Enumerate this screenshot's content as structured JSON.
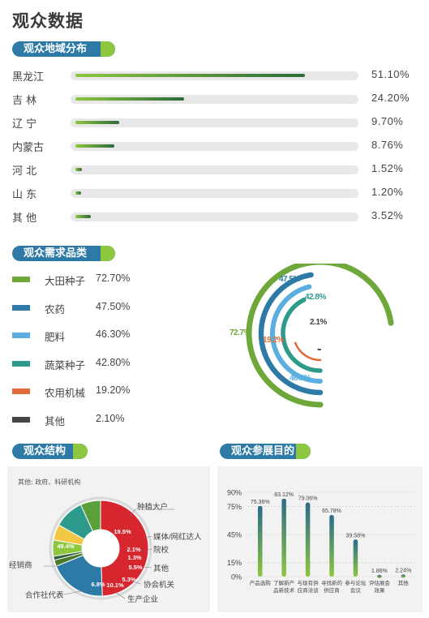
{
  "page": {
    "title": "观众数据"
  },
  "sections": {
    "region": "观众地域分布",
    "demand": "观众需求品类",
    "structure": "观众结构",
    "purpose": "观众参展目的"
  },
  "structure_note": "其他: 政府、科研机构",
  "chart_data": [
    {
      "type": "bar",
      "title": "观众地域分布",
      "orientation": "horizontal",
      "categories": [
        "黑龙江",
        "吉 林",
        "辽 宁",
        "内蒙古",
        "河 北",
        "山 东",
        "其 他"
      ],
      "values": [
        51.1,
        24.2,
        9.7,
        8.76,
        1.52,
        1.2,
        3.52
      ],
      "labels": [
        "51.10%",
        "24.20%",
        "9.70%",
        "8.76%",
        "1.52%",
        "1.20%",
        "3.52%"
      ],
      "colors": {
        "start": "#8dc63f",
        "end": "#2c6a3a",
        "track": "#e8e8e8"
      }
    },
    {
      "type": "pie",
      "variant": "concentric-rings",
      "title": "观众需求品类",
      "categories": [
        "大田种子",
        "农药",
        "肥料",
        "蔬菜种子",
        "农用机械",
        "其他"
      ],
      "values": [
        72.7,
        47.5,
        46.3,
        42.8,
        19.2,
        2.1
      ],
      "labels": [
        "72.70%",
        "47.50%",
        "46.30%",
        "42.80%",
        "19.20%",
        "2.10%"
      ],
      "ring_labels": [
        "72.7%",
        "47.5%",
        "46.3%",
        "42.8%",
        "19.2%",
        "2.1%"
      ],
      "colors": [
        "#6fa83a",
        "#2d7aa6",
        "#5aaee0",
        "#2e9a8c",
        "#e06a3a",
        "#444444"
      ]
    },
    {
      "type": "pie",
      "variant": "donut",
      "title": "观众结构",
      "categories": [
        "经销商",
        "种植大户",
        "媒体/网红达人",
        "院校",
        "其他",
        "协会机关",
        "生产企业",
        "合作社代表"
      ],
      "values": [
        49.4,
        19.5,
        2.1,
        1.3,
        5.5,
        5.3,
        10.1,
        6.8
      ],
      "labels": [
        "49.4%",
        "19.5%",
        "2.1%",
        "1.3%",
        "5.5%",
        "5.3%",
        "10.1%",
        "6.8%"
      ],
      "colors": [
        "#d7262e",
        "#2d7aa6",
        "#4a7b2a",
        "#2c5e3b",
        "#8dc63f",
        "#f2c744",
        "#2e9a8c",
        "#5aa03a"
      ]
    },
    {
      "type": "bar",
      "title": "观众参展目的",
      "categories": [
        "产品选购",
        "了解新产品新技术",
        "与现有供应商洽谈",
        "寻找新的供应商",
        "参与论坛会议",
        "评估展会效果",
        "其他"
      ],
      "values": [
        75.36,
        83.12,
        79.06,
        65.78,
        39.58,
        1.86,
        2.24
      ],
      "labels": [
        "75.36%",
        "83.12%",
        "79.06%",
        "65.78%",
        "39.58%",
        "1.86%",
        "2.24%"
      ],
      "yticks": [
        "90%",
        "75%",
        "45%",
        "15%",
        "0%"
      ],
      "ylim": [
        0,
        90
      ],
      "colors": {
        "start": "#2c6a8a",
        "end": "#8dc63f"
      }
    }
  ]
}
